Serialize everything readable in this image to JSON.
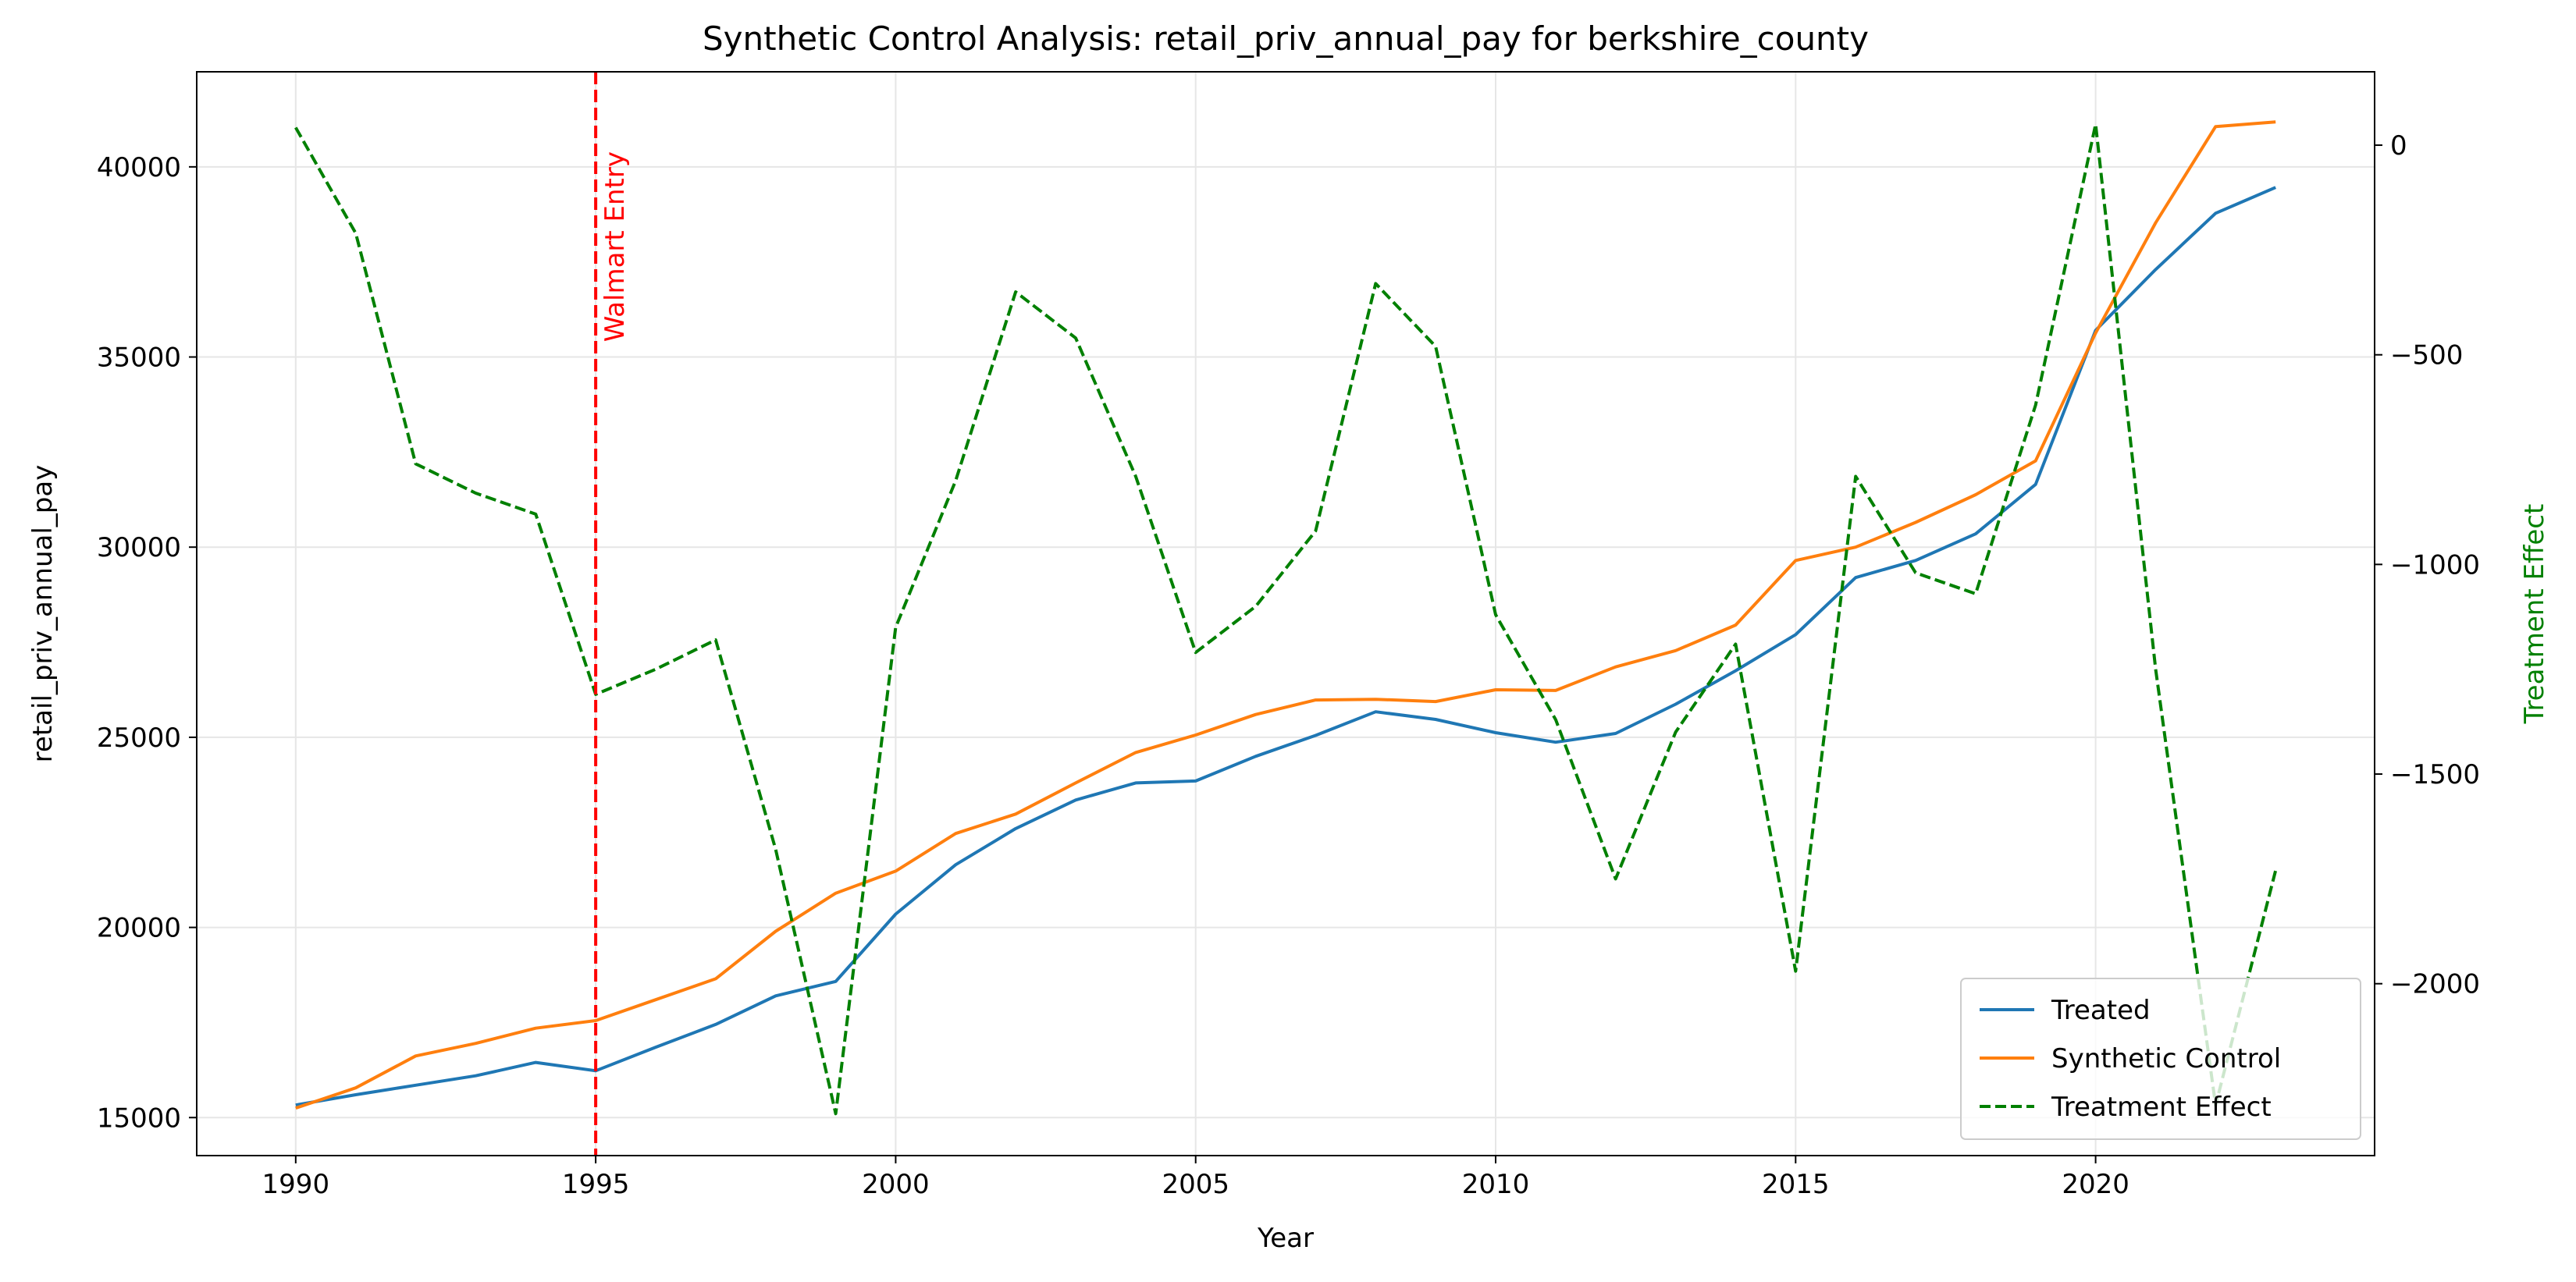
{
  "chart_data": {
    "type": "line",
    "title": "Synthetic Control Analysis: retail_priv_annual_pay for berkshire_county",
    "xlabel": "Year",
    "ylabel": "retail_priv_annual_pay",
    "y2label": "Treatment Effect",
    "xlim": [
      1988.35,
      2024.65
    ],
    "ylim": [
      14000,
      42500
    ],
    "y2lim": [
      -2410,
      175
    ],
    "xticks": [
      1990,
      1995,
      2000,
      2005,
      2010,
      2015,
      2020
    ],
    "yticks": [
      15000,
      20000,
      25000,
      30000,
      35000,
      40000
    ],
    "y2ticks": [
      0,
      -500,
      -1000,
      -1500,
      -2000
    ],
    "grid": true,
    "legend_position": "lower-right",
    "annotation": {
      "x": 1995,
      "label": "Walmart Entry",
      "color": "#ff0000"
    },
    "x": [
      1990,
      1991,
      1992,
      1993,
      1994,
      1995,
      1996,
      1997,
      1998,
      1999,
      2000,
      2001,
      2002,
      2003,
      2004,
      2005,
      2006,
      2007,
      2008,
      2009,
      2010,
      2011,
      2012,
      2013,
      2014,
      2015,
      2016,
      2017,
      2018,
      2019,
      2020,
      2021,
      2022,
      2023
    ],
    "series": [
      {
        "name": "Treated",
        "axis": "left",
        "color": "#1f77b4",
        "dash": "solid",
        "values": [
          15330,
          15600,
          15850,
          16100,
          16450,
          16230,
          16850,
          17450,
          18200,
          18580,
          20350,
          21650,
          22600,
          23350,
          23800,
          23850,
          24500,
          25050,
          25670,
          25470,
          25120,
          24870,
          25100,
          25870,
          26750,
          27700,
          29200,
          29650,
          30350,
          31650,
          35700,
          37300,
          38780,
          39460
        ]
      },
      {
        "name": "Synthetic Control",
        "axis": "left",
        "color": "#ff7f0e",
        "dash": "solid",
        "values": [
          15250,
          15780,
          16620,
          16950,
          17350,
          17550,
          18100,
          18650,
          19900,
          20900,
          21480,
          22470,
          22980,
          23800,
          24600,
          25060,
          25600,
          25980,
          26000,
          25940,
          26250,
          26230,
          26850,
          27280,
          27950,
          29650,
          30000,
          30650,
          31380,
          32270,
          35630,
          38530,
          41060,
          41180
        ]
      },
      {
        "name": "Treatment Effect",
        "axis": "right",
        "color": "#008000",
        "dash": "dashed",
        "values": [
          42,
          -210,
          -760,
          -830,
          -880,
          -1310,
          -1250,
          -1180,
          -1680,
          -2310,
          -1150,
          -800,
          -350,
          -460,
          -790,
          -1210,
          -1100,
          -920,
          -330,
          -480,
          -1120,
          -1370,
          -1750,
          -1400,
          -1190,
          -1970,
          -790,
          -1020,
          -1070,
          -620,
          50,
          -1250,
          -2290,
          -1730
        ]
      }
    ]
  }
}
